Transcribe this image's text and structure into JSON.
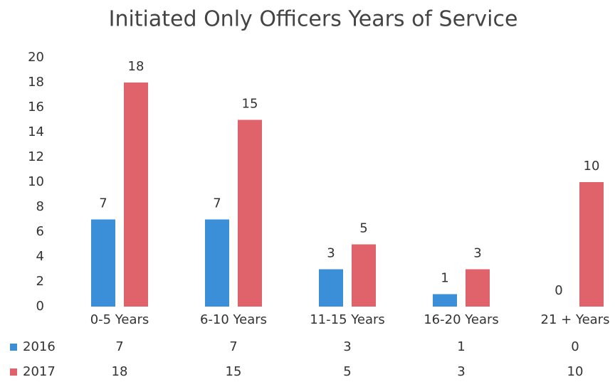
{
  "chart_data": {
    "type": "bar",
    "title": "Initiated Only Officers Years of Service",
    "categories": [
      "0-5 Years",
      "6-10 Years",
      "11-15 Years",
      "16-20 Years",
      "21 + Years"
    ],
    "series": [
      {
        "name": "2016",
        "color": "#3b8fd8",
        "values": [
          7,
          7,
          3,
          1,
          0
        ]
      },
      {
        "name": "2017",
        "color": "#e0636c",
        "values": [
          18,
          15,
          5,
          3,
          10
        ]
      }
    ],
    "ylim": [
      0,
      20
    ],
    "yticks": [
      0,
      2,
      4,
      6,
      8,
      10,
      12,
      14,
      16,
      18,
      20
    ],
    "grid": false
  }
}
